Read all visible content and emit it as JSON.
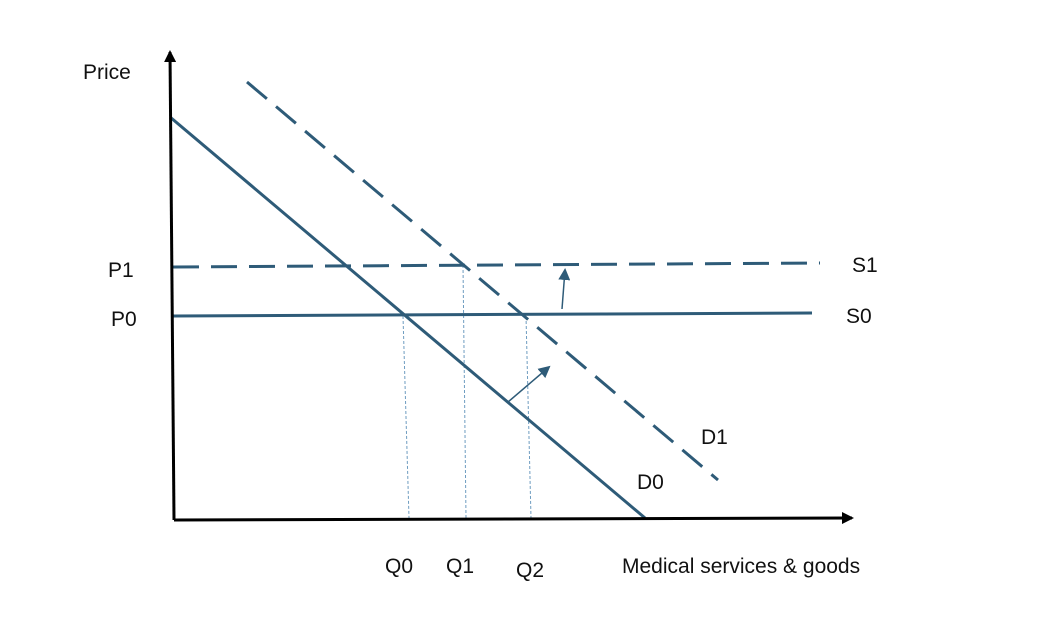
{
  "diagram": {
    "y_axis_label": "Price",
    "x_axis_label": "Medical services & goods",
    "price_labels": {
      "p1": "P1",
      "p0": "P0"
    },
    "quantity_labels": {
      "q0": "Q0",
      "q1": "Q1",
      "q2": "Q2"
    },
    "curve_labels": {
      "s1": "S1",
      "s0": "S0",
      "d1": "D1",
      "d0": "D0"
    },
    "colors": {
      "curve": "#2e5b78",
      "axis": "#000000",
      "guide": "#6e9cc0"
    }
  }
}
